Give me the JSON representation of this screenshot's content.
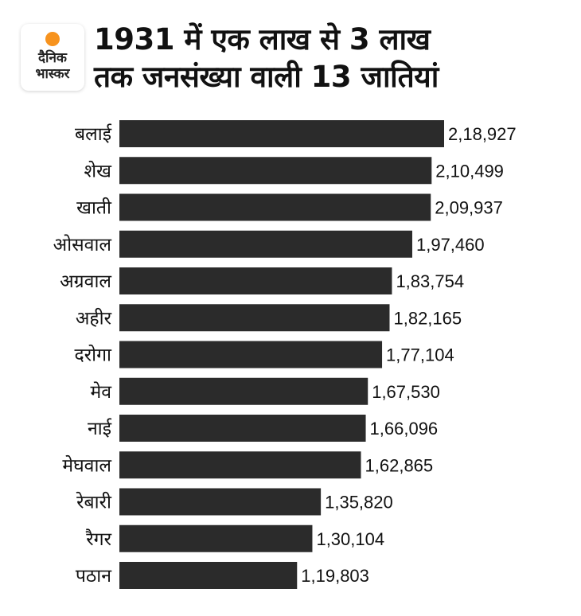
{
  "logo": {
    "line1": "दैनिक",
    "line2": "भास्कर",
    "dot_color": "#f7931e"
  },
  "title": {
    "line1": "1931 में एक लाख से 3 लाख",
    "line2": "तक जनसंख्या वाली 13 जातियां"
  },
  "chart_data": {
    "type": "bar",
    "orientation": "horizontal",
    "title": "1931 में एक लाख से 3 लाख तक जनसंख्या वाली 13 जातियां",
    "categories": [
      "बलाई",
      "शेख",
      "खाती",
      "ओसवाल",
      "अग्रवाल",
      "अहीर",
      "दरोगा",
      "मेव",
      "नाई",
      "मेघवाल",
      "रेबारी",
      "रैगर",
      "पठान"
    ],
    "values": [
      218927,
      210499,
      209937,
      197460,
      183754,
      182165,
      177104,
      167530,
      166096,
      162865,
      135820,
      130104,
      119803
    ],
    "labels": [
      "2,18,927",
      "2,10,499",
      "2,09,937",
      "1,97,460",
      "1,83,754",
      "1,82,165",
      "1,77,104",
      "1,67,530",
      "1,66,096",
      "1,62,865",
      "1,35,820",
      "1,30,104",
      "1,19,803"
    ],
    "xlim": [
      0,
      218927
    ],
    "grid": false,
    "bar_color": "#2b2b2b"
  }
}
